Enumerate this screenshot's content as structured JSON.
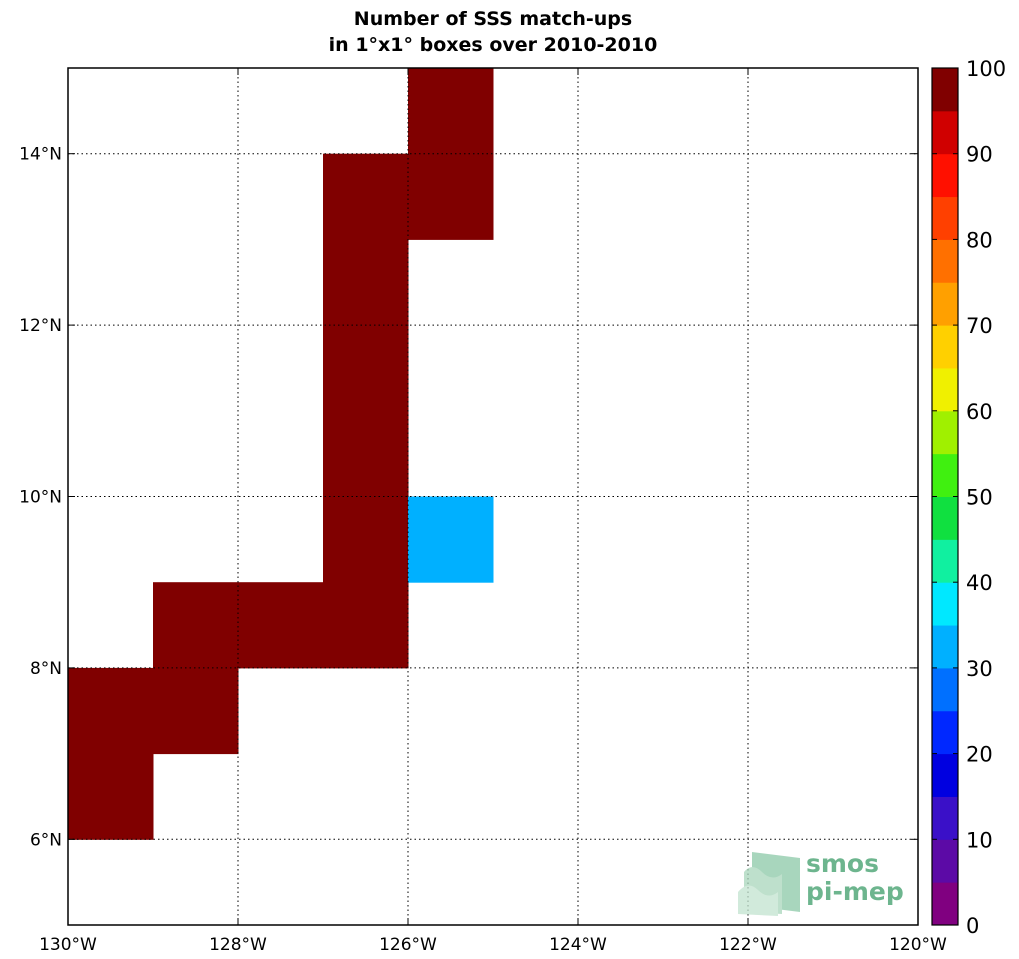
{
  "chart_data": {
    "type": "heatmap",
    "title_line1": "Number of SSS match-ups",
    "title_line2": "in 1°x1° boxes over 2010-2010",
    "xlim": [
      -130,
      -120
    ],
    "ylim": [
      5,
      15
    ],
    "x_ticks": [
      {
        "value": -130,
        "label": "130°W"
      },
      {
        "value": -128,
        "label": "128°W"
      },
      {
        "value": -126,
        "label": "126°W"
      },
      {
        "value": -124,
        "label": "124°W"
      },
      {
        "value": -122,
        "label": "122°W"
      },
      {
        "value": -120,
        "label": "120°W"
      }
    ],
    "y_ticks": [
      {
        "value": 6,
        "label": "6°N"
      },
      {
        "value": 8,
        "label": "8°N"
      },
      {
        "value": 10,
        "label": "10°N"
      },
      {
        "value": 12,
        "label": "12°N"
      },
      {
        "value": 14,
        "label": "14°N"
      }
    ],
    "grid": true,
    "cell_size_deg": 1,
    "cells": [
      {
        "lon": -130,
        "lat": 6,
        "value": 100
      },
      {
        "lon": -130,
        "lat": 7,
        "value": 100
      },
      {
        "lon": -129,
        "lat": 7,
        "value": 100
      },
      {
        "lon": -129,
        "lat": 8,
        "value": 100
      },
      {
        "lon": -128,
        "lat": 8,
        "value": 100
      },
      {
        "lon": -127,
        "lat": 8,
        "value": 100
      },
      {
        "lon": -127,
        "lat": 9,
        "value": 100
      },
      {
        "lon": -127,
        "lat": 10,
        "value": 100
      },
      {
        "lon": -127,
        "lat": 11,
        "value": 100
      },
      {
        "lon": -127,
        "lat": 12,
        "value": 100
      },
      {
        "lon": -127,
        "lat": 13,
        "value": 100
      },
      {
        "lon": -126,
        "lat": 13,
        "value": 100
      },
      {
        "lon": -126,
        "lat": 14,
        "value": 100
      },
      {
        "lon": -126,
        "lat": 9,
        "value": 32
      }
    ],
    "colorbar": {
      "min": 0,
      "max": 100,
      "tick_values": [
        0,
        10,
        20,
        30,
        40,
        50,
        60,
        70,
        80,
        90,
        100
      ],
      "placement": "right",
      "colors": [
        "#800080",
        "#5c0aa6",
        "#3a10c8",
        "#0000e0",
        "#0028ff",
        "#0070ff",
        "#00b0ff",
        "#00e8ff",
        "#10f0a0",
        "#10e040",
        "#40f010",
        "#a0f000",
        "#f0f000",
        "#ffd000",
        "#ffa000",
        "#ff7000",
        "#ff4000",
        "#ff1000",
        "#d00000",
        "#800000"
      ]
    }
  },
  "logo": {
    "line1": "smos",
    "line2": "pi-mep"
  }
}
